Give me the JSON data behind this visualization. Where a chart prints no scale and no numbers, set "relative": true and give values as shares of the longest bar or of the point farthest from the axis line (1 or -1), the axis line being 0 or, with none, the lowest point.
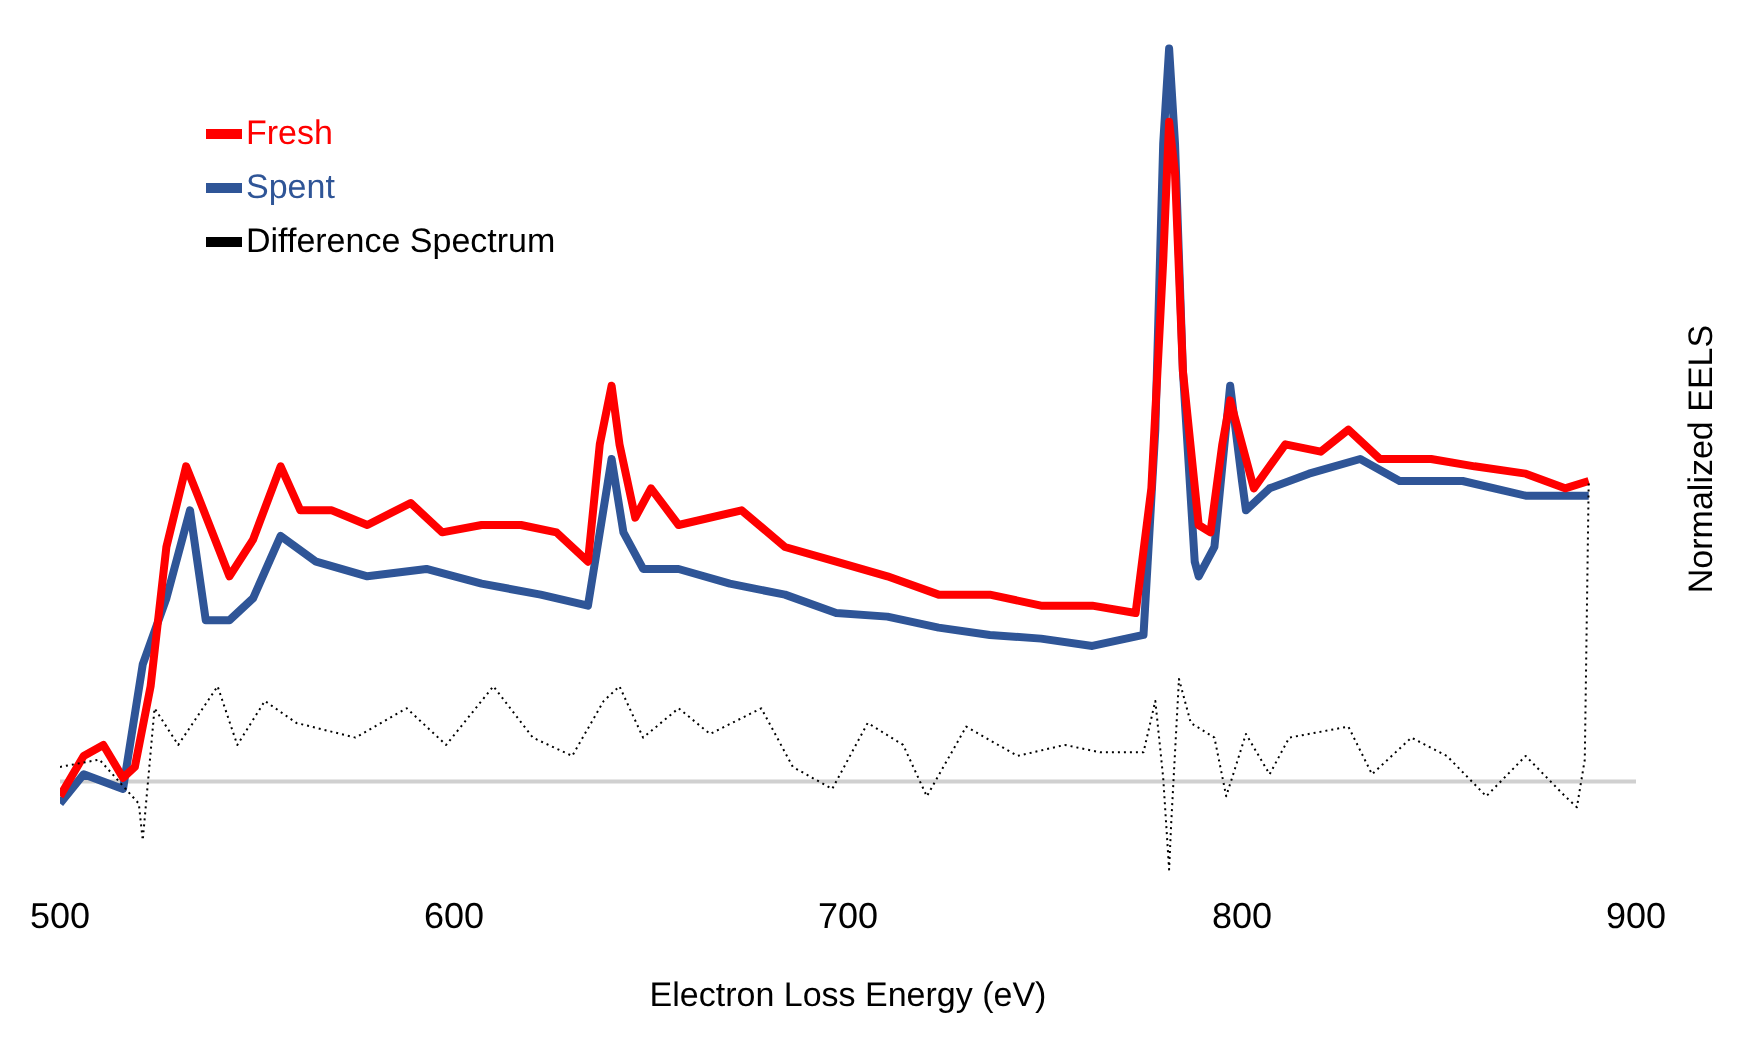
{
  "chart_data": {
    "type": "line",
    "relative": true,
    "xlabel": "Electron Loss Energy (eV)",
    "ylabel": "Normalized EELS",
    "xlim": [
      500,
      900
    ],
    "xticks": [
      500,
      600,
      700,
      800,
      900
    ],
    "legend": "top left",
    "marker": "none",
    "series": [
      {
        "name": "Fresh",
        "color": "#ff0000",
        "x": [
          500,
          506,
          511,
          516,
          519,
          523,
          527,
          532,
          535,
          543,
          549,
          556,
          561,
          569,
          578,
          589,
          597,
          607,
          617,
          626,
          634,
          637,
          640,
          642,
          646,
          650,
          657,
          673,
          684,
          697,
          710,
          723,
          736,
          749,
          762,
          773,
          777,
          780,
          781.5,
          783,
          785,
          789,
          792,
          795,
          797,
          800,
          803,
          811,
          820,
          827,
          835,
          848,
          859,
          872,
          882,
          888
        ],
        "values": [
          -0.02,
          0.035,
          0.05,
          0.005,
          0.02,
          0.13,
          0.32,
          0.43,
          0.39,
          0.28,
          0.33,
          0.43,
          0.37,
          0.37,
          0.35,
          0.38,
          0.34,
          0.35,
          0.35,
          0.34,
          0.3,
          0.46,
          0.54,
          0.46,
          0.36,
          0.4,
          0.35,
          0.37,
          0.32,
          0.3,
          0.28,
          0.255,
          0.255,
          0.24,
          0.24,
          0.23,
          0.4,
          0.71,
          0.9,
          0.83,
          0.56,
          0.35,
          0.34,
          0.46,
          0.52,
          0.46,
          0.4,
          0.46,
          0.45,
          0.48,
          0.44,
          0.44,
          0.43,
          0.42,
          0.4,
          0.41
        ]
      },
      {
        "name": "Spent",
        "color": "#2f5597",
        "x": [
          500,
          506,
          516,
          521,
          527,
          533,
          537,
          543,
          549,
          556,
          565,
          578,
          593,
          607,
          622,
          634,
          640,
          643,
          648,
          657,
          670,
          684,
          697,
          710,
          723,
          736,
          749,
          762,
          775,
          778,
          780,
          781.5,
          783,
          785,
          788,
          789,
          793,
          797,
          800,
          801,
          807,
          817,
          830,
          840,
          856,
          872,
          888
        ],
        "values": [
          -0.03,
          0.01,
          -0.01,
          0.16,
          0.25,
          0.37,
          0.22,
          0.22,
          0.25,
          0.335,
          0.3,
          0.28,
          0.29,
          0.27,
          0.255,
          0.24,
          0.44,
          0.34,
          0.29,
          0.29,
          0.27,
          0.255,
          0.23,
          0.225,
          0.21,
          0.2,
          0.195,
          0.185,
          0.2,
          0.48,
          0.87,
          1,
          0.87,
          0.56,
          0.3,
          0.28,
          0.32,
          0.54,
          0.41,
          0.37,
          0.4,
          0.42,
          0.44,
          0.41,
          0.41,
          0.39,
          0.39
        ]
      },
      {
        "name": "Difference Spectrum",
        "color": "#000000",
        "line_style": "dotted",
        "x": [
          500,
          510,
          520,
          521,
          524,
          530,
          540,
          545,
          552,
          560,
          575,
          588,
          598,
          610,
          620,
          630,
          638,
          642,
          648,
          657,
          665,
          678,
          686,
          696,
          705,
          714,
          720,
          730,
          743,
          755,
          764,
          775,
          778,
          780,
          781.5,
          782,
          784,
          787,
          793,
          796,
          801,
          807,
          812,
          827,
          833,
          843,
          852,
          862,
          872,
          882,
          885,
          887,
          888
        ],
        "values": [
          0.02,
          0.03,
          -0.03,
          -0.08,
          0.1,
          0.05,
          0.13,
          0.05,
          0.11,
          0.08,
          0.06,
          0.1,
          0.05,
          0.13,
          0.06,
          0.035,
          0.11,
          0.13,
          0.06,
          0.1,
          0.065,
          0.1,
          0.02,
          -0.01,
          0.08,
          0.05,
          -0.02,
          0.075,
          0.035,
          0.05,
          0.04,
          0.04,
          0.11,
          0.005,
          -0.12,
          -0.06,
          0.14,
          0.08,
          0.06,
          -0.02,
          0.065,
          0.01,
          0.06,
          0.075,
          0.01,
          0.06,
          0.035,
          -0.02,
          0.035,
          -0.02,
          -0.035,
          0.03,
          0.41
        ]
      }
    ]
  }
}
